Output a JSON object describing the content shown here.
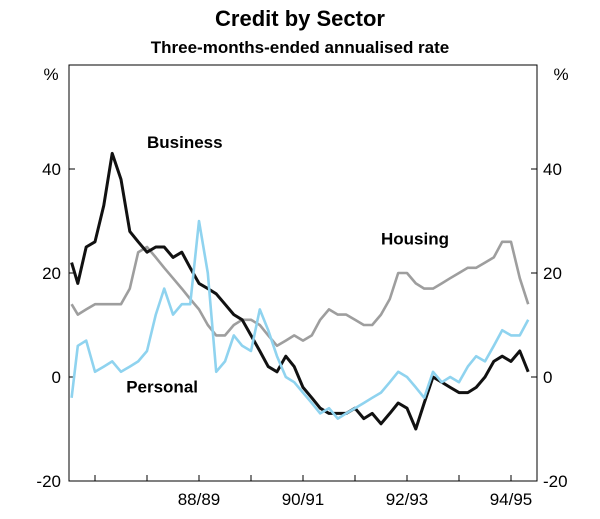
{
  "chart_data": {
    "type": "line",
    "title": "Credit by Sector",
    "subtitle": "Three-months-ended annualised rate",
    "ylabel_left": "%",
    "ylabel_right": "%",
    "ylim": [
      -20,
      60
    ],
    "yticks": [
      -20,
      0,
      20,
      40
    ],
    "ytick_labels": [
      "-20",
      "0",
      "20",
      "40"
    ],
    "xlim": [
      1986.5,
      1995.5
    ],
    "xtick_labels": [
      "88/89",
      "90/91",
      "92/93",
      "94/95"
    ],
    "xtick_positions": [
      1989.0,
      1991.0,
      1993.0,
      1995.0
    ],
    "grid": false,
    "series": [
      {
        "name": "Housing",
        "label": "Housing",
        "color": "#9e9e9e",
        "x": [
          1986.55,
          1986.67,
          1986.83,
          1987.0,
          1987.17,
          1987.33,
          1987.5,
          1987.67,
          1987.83,
          1988.0,
          1988.17,
          1988.33,
          1988.5,
          1988.67,
          1988.83,
          1989.0,
          1989.17,
          1989.33,
          1989.5,
          1989.67,
          1989.83,
          1990.0,
          1990.17,
          1990.33,
          1990.5,
          1990.67,
          1990.83,
          1991.0,
          1991.17,
          1991.33,
          1991.5,
          1991.67,
          1991.83,
          1992.0,
          1992.17,
          1992.33,
          1992.5,
          1992.67,
          1992.83,
          1993.0,
          1993.17,
          1993.33,
          1993.5,
          1993.67,
          1993.83,
          1994.0,
          1994.17,
          1994.33,
          1994.5,
          1994.67,
          1994.83,
          1995.0,
          1995.17,
          1995.33
        ],
        "values": [
          14,
          12,
          13,
          14,
          14,
          14,
          14,
          17,
          24,
          25,
          23,
          21,
          19,
          17,
          15,
          13,
          10,
          8,
          8,
          10,
          11,
          11,
          10,
          8,
          6,
          7,
          8,
          7,
          8,
          11,
          13,
          12,
          12,
          11,
          10,
          10,
          12,
          15,
          20,
          20,
          18,
          17,
          17,
          18,
          19,
          20,
          21,
          21,
          22,
          23,
          26,
          26,
          19,
          14
        ]
      },
      {
        "name": "Business",
        "label": "Business",
        "color": "#111111",
        "x": [
          1986.55,
          1986.67,
          1986.83,
          1987.0,
          1987.17,
          1987.33,
          1987.5,
          1987.67,
          1987.83,
          1988.0,
          1988.17,
          1988.33,
          1988.5,
          1988.67,
          1988.83,
          1989.0,
          1989.17,
          1989.33,
          1989.5,
          1989.67,
          1989.83,
          1990.0,
          1990.17,
          1990.33,
          1990.5,
          1990.67,
          1990.83,
          1991.0,
          1991.17,
          1991.33,
          1991.5,
          1991.67,
          1991.83,
          1992.0,
          1992.17,
          1992.33,
          1992.5,
          1992.67,
          1992.83,
          1993.0,
          1993.17,
          1993.33,
          1993.5,
          1993.67,
          1993.83,
          1994.0,
          1994.17,
          1994.33,
          1994.5,
          1994.67,
          1994.83,
          1995.0,
          1995.17,
          1995.33
        ],
        "values": [
          22,
          18,
          25,
          26,
          33,
          43,
          38,
          28,
          26,
          24,
          25,
          25,
          23,
          24,
          21,
          18,
          17,
          16,
          14,
          12,
          11,
          8,
          5,
          2,
          1,
          4,
          2,
          -2,
          -4,
          -6,
          -7,
          -7,
          -7,
          -6,
          -8,
          -7,
          -9,
          -7,
          -5,
          -6,
          -10,
          -5,
          0,
          -1,
          -2,
          -3,
          -3,
          -2,
          0,
          3,
          4,
          3,
          5,
          1
        ]
      },
      {
        "name": "Personal",
        "label": "Personal",
        "color": "#8fd3ef",
        "x": [
          1986.55,
          1986.67,
          1986.83,
          1987.0,
          1987.17,
          1987.33,
          1987.5,
          1987.67,
          1987.83,
          1988.0,
          1988.17,
          1988.33,
          1988.5,
          1988.67,
          1988.83,
          1989.0,
          1989.17,
          1989.33,
          1989.5,
          1989.67,
          1989.83,
          1990.0,
          1990.17,
          1990.33,
          1990.5,
          1990.67,
          1990.83,
          1991.0,
          1991.17,
          1991.33,
          1991.5,
          1991.67,
          1991.83,
          1992.0,
          1992.17,
          1992.33,
          1992.5,
          1992.67,
          1992.83,
          1993.0,
          1993.17,
          1993.33,
          1993.5,
          1993.67,
          1993.83,
          1994.0,
          1994.17,
          1994.33,
          1994.5,
          1994.67,
          1994.83,
          1995.0,
          1995.17,
          1995.33
        ],
        "values": [
          -4,
          6,
          7,
          1,
          2,
          3,
          1,
          2,
          3,
          5,
          12,
          17,
          12,
          14,
          14,
          30,
          20,
          1,
          3,
          8,
          6,
          5,
          13,
          9,
          4,
          0,
          -1,
          -3,
          -5,
          -7,
          -6,
          -8,
          -7,
          -6,
          -5,
          -4,
          -3,
          -1,
          1,
          0,
          -2,
          -4,
          1,
          -1,
          0,
          -1,
          2,
          4,
          3,
          6,
          9,
          8,
          8,
          11
        ]
      }
    ],
    "annotations": [
      {
        "text": "Business",
        "x": 1988.0,
        "y": 44
      },
      {
        "text": "Housing",
        "x": 1992.5,
        "y": 25.5
      },
      {
        "text": "Personal",
        "x": 1987.6,
        "y": -3
      }
    ]
  }
}
